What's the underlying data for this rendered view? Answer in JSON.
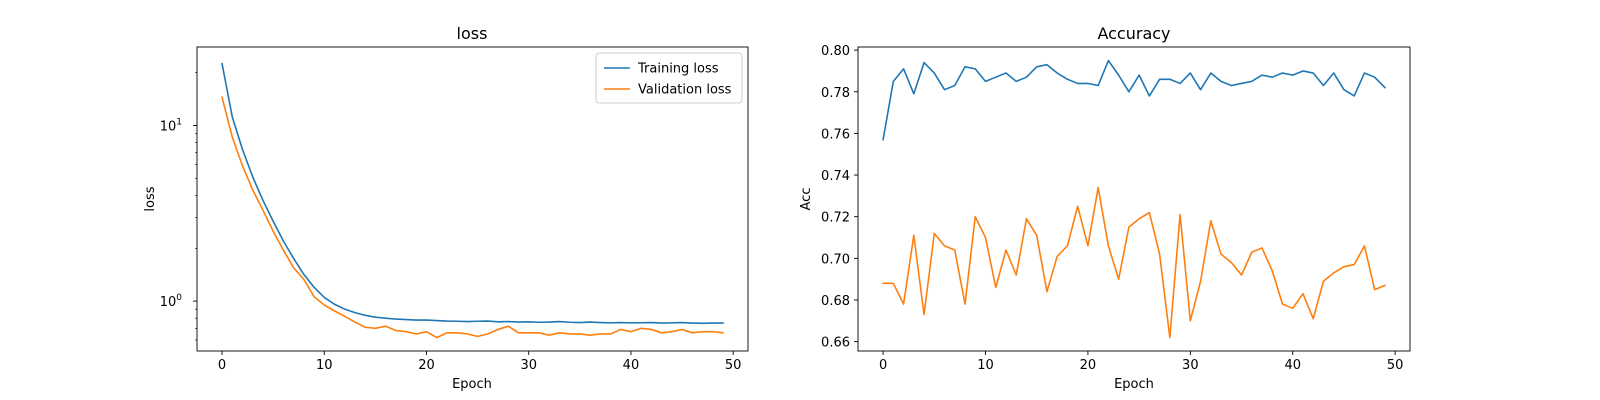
{
  "chart_data": [
    {
      "type": "line",
      "title": "loss",
      "xlabel": "Epoch",
      "ylabel": "loss",
      "yscale": "log",
      "ylim": [
        0.52,
        28
      ],
      "xlim": [
        -2.45,
        51.45
      ],
      "xticks": [
        0,
        10,
        20,
        30,
        40,
        50
      ],
      "yticks": [
        {
          "value": 1,
          "label": "10",
          "sup": "0"
        },
        {
          "value": 10,
          "label": "10",
          "sup": "1"
        }
      ],
      "grid": false,
      "legend": "top-right",
      "x": [
        0,
        1,
        2,
        3,
        4,
        5,
        6,
        7,
        8,
        9,
        10,
        11,
        12,
        13,
        14,
        15,
        16,
        17,
        18,
        19,
        20,
        21,
        22,
        23,
        24,
        25,
        26,
        27,
        28,
        29,
        30,
        31,
        32,
        33,
        34,
        35,
        36,
        37,
        38,
        39,
        40,
        41,
        42,
        43,
        44,
        45,
        46,
        47,
        48,
        49
      ],
      "series": [
        {
          "name": "Training loss",
          "color": "#1f77b4",
          "values": [
            22.5,
            11.2,
            7.3,
            5.1,
            3.75,
            2.85,
            2.2,
            1.75,
            1.42,
            1.2,
            1.05,
            0.96,
            0.9,
            0.86,
            0.83,
            0.81,
            0.8,
            0.79,
            0.785,
            0.78,
            0.78,
            0.775,
            0.77,
            0.768,
            0.765,
            0.768,
            0.77,
            0.762,
            0.765,
            0.76,
            0.762,
            0.758,
            0.76,
            0.765,
            0.758,
            0.755,
            0.76,
            0.755,
            0.752,
            0.755,
            0.752,
            0.753,
            0.755,
            0.75,
            0.752,
            0.755,
            0.75,
            0.748,
            0.75,
            0.75
          ]
        },
        {
          "name": "Validation loss",
          "color": "#ff7f0e",
          "values": [
            14.5,
            8.6,
            5.9,
            4.3,
            3.3,
            2.5,
            1.95,
            1.55,
            1.33,
            1.06,
            0.95,
            0.88,
            0.82,
            0.76,
            0.71,
            0.7,
            0.72,
            0.68,
            0.67,
            0.65,
            0.67,
            0.62,
            0.66,
            0.66,
            0.65,
            0.63,
            0.65,
            0.69,
            0.72,
            0.66,
            0.66,
            0.66,
            0.64,
            0.66,
            0.65,
            0.65,
            0.64,
            0.65,
            0.65,
            0.69,
            0.67,
            0.7,
            0.69,
            0.66,
            0.67,
            0.69,
            0.66,
            0.67,
            0.67,
            0.66
          ]
        }
      ]
    },
    {
      "type": "line",
      "title": "Accuracy",
      "xlabel": "Epoch",
      "ylabel": "Acc",
      "yscale": "linear",
      "ylim": [
        0.6555,
        0.8015
      ],
      "xlim": [
        -2.45,
        51.45
      ],
      "xticks": [
        0,
        10,
        20,
        30,
        40,
        50
      ],
      "yticks": [
        {
          "value": 0.66,
          "label": "0.66"
        },
        {
          "value": 0.68,
          "label": "0.68"
        },
        {
          "value": 0.7,
          "label": "0.70"
        },
        {
          "value": 0.72,
          "label": "0.72"
        },
        {
          "value": 0.74,
          "label": "0.74"
        },
        {
          "value": 0.76,
          "label": "0.76"
        },
        {
          "value": 0.78,
          "label": "0.78"
        },
        {
          "value": 0.8,
          "label": "0.80"
        }
      ],
      "grid": false,
      "legend": "none",
      "x": [
        0,
        1,
        2,
        3,
        4,
        5,
        6,
        7,
        8,
        9,
        10,
        11,
        12,
        13,
        14,
        15,
        16,
        17,
        18,
        19,
        20,
        21,
        22,
        23,
        24,
        25,
        26,
        27,
        28,
        29,
        30,
        31,
        32,
        33,
        34,
        35,
        36,
        37,
        38,
        39,
        40,
        41,
        42,
        43,
        44,
        45,
        46,
        47,
        48,
        49
      ],
      "series": [
        {
          "color": "#1f77b4",
          "values": [
            0.757,
            0.785,
            0.791,
            0.779,
            0.794,
            0.789,
            0.781,
            0.783,
            0.792,
            0.791,
            0.785,
            0.787,
            0.789,
            0.785,
            0.787,
            0.792,
            0.793,
            0.789,
            0.786,
            0.784,
            0.784,
            0.783,
            0.795,
            0.788,
            0.78,
            0.788,
            0.778,
            0.786,
            0.786,
            0.784,
            0.789,
            0.781,
            0.789,
            0.785,
            0.783,
            0.784,
            0.785,
            0.788,
            0.787,
            0.789,
            0.788,
            0.79,
            0.789,
            0.783,
            0.789,
            0.781,
            0.778,
            0.789,
            0.787,
            0.782
          ]
        },
        {
          "color": "#ff7f0e",
          "values": [
            0.688,
            0.688,
            0.678,
            0.711,
            0.673,
            0.712,
            0.706,
            0.704,
            0.678,
            0.72,
            0.71,
            0.686,
            0.704,
            0.692,
            0.719,
            0.711,
            0.684,
            0.701,
            0.706,
            0.725,
            0.706,
            0.734,
            0.706,
            0.69,
            0.715,
            0.719,
            0.722,
            0.702,
            0.662,
            0.721,
            0.67,
            0.689,
            0.718,
            0.702,
            0.698,
            0.692,
            0.703,
            0.705,
            0.694,
            0.678,
            0.676,
            0.683,
            0.671,
            0.689,
            0.693,
            0.696,
            0.697,
            0.706,
            0.685,
            0.687
          ]
        }
      ]
    }
  ]
}
